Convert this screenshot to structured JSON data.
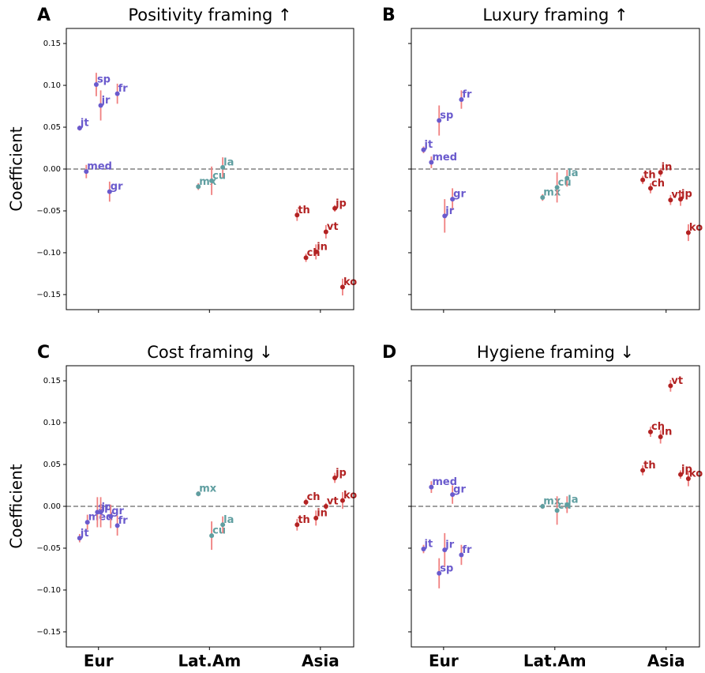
{
  "chart_data": [
    {
      "type": "scatter",
      "panel": "A",
      "title": "Positivity framing ↑",
      "ylabel": "Coefficient",
      "xlim": [
        -0.29,
        2.3
      ],
      "ylim": [
        -0.168,
        0.168
      ],
      "xticks": [
        0,
        1,
        2
      ],
      "show_xtick_labels": false,
      "yticks": [
        {
          "value": -0.15,
          "label": "−0.15"
        },
        {
          "value": -0.1,
          "label": "−0.10"
        },
        {
          "value": -0.05,
          "label": "−0.05"
        },
        {
          "value": 0,
          "label": "0.00"
        },
        0.05,
        {
          "value": 0.1,
          "label": "0.10"
        },
        0.15
      ],
      "show_ytick_labels": true,
      "hline": 0,
      "error_color": "#f08080",
      "series": [
        {
          "color": "#6a5acd",
          "labels": [
            "jt",
            "sp",
            "jr",
            "fr",
            "med",
            "gr"
          ],
          "x": [
            -0.17,
            -0.02,
            0.02,
            0.17,
            -0.11,
            0.1
          ],
          "values": [
            0.049,
            0.101,
            0.076,
            0.09,
            -0.003,
            -0.027
          ],
          "errors": [
            0.003,
            0.014,
            0.018,
            0.012,
            0.008,
            0.012
          ]
        },
        {
          "color": "#5f9ea0",
          "labels": [
            "mx",
            "cu",
            "la"
          ],
          "x": [
            0.9,
            1.02,
            1.12
          ],
          "values": [
            -0.021,
            -0.014,
            0.002
          ],
          "errors": [
            0.004,
            0.017,
            0.012
          ]
        },
        {
          "color": "#b22222",
          "labels": [
            "th",
            "jp",
            "vt",
            "in",
            "ch",
            "ko"
          ],
          "x": [
            1.79,
            2.13,
            2.05,
            1.96,
            1.87,
            2.2
          ],
          "values": [
            -0.055,
            -0.047,
            -0.075,
            -0.099,
            -0.106,
            -0.141
          ],
          "errors": [
            0.007,
            0.004,
            0.008,
            0.009,
            0.005,
            0.01
          ]
        }
      ]
    },
    {
      "type": "scatter",
      "panel": "B",
      "title": "Luxury framing ↑",
      "xlim": [
        -0.29,
        2.3
      ],
      "ylim": [
        -0.168,
        0.168
      ],
      "xticks": [
        0,
        1,
        2
      ],
      "show_xtick_labels": false,
      "yticks": [
        -0.15,
        -0.1,
        -0.05,
        0,
        0.05,
        0.1,
        0.15
      ],
      "show_ytick_labels": false,
      "hline": 0,
      "error_color": "#f08080",
      "series": [
        {
          "color": "#6a5acd",
          "labels": [
            "jt",
            "med",
            "sp",
            "fr",
            "gr",
            "jr"
          ],
          "x": [
            -0.18,
            -0.11,
            -0.04,
            0.16,
            0.08,
            0.01
          ],
          "values": [
            0.023,
            0.008,
            0.058,
            0.083,
            -0.036,
            -0.056
          ],
          "errors": [
            0.004,
            0.007,
            0.018,
            0.011,
            0.013,
            0.02
          ]
        },
        {
          "color": "#5f9ea0",
          "labels": [
            "mx",
            "cu",
            "la"
          ],
          "x": [
            0.89,
            1.02,
            1.11
          ],
          "values": [
            -0.034,
            -0.022,
            -0.011
          ],
          "errors": [
            0.004,
            0.018,
            0.01
          ]
        },
        {
          "color": "#b22222",
          "labels": [
            "th",
            "ch",
            "in",
            "vt",
            "jp",
            "ko"
          ],
          "x": [
            1.79,
            1.86,
            1.95,
            2.04,
            2.13,
            2.2
          ],
          "values": [
            -0.013,
            -0.023,
            -0.004,
            -0.037,
            -0.036,
            -0.076
          ],
          "errors": [
            0.005,
            0.006,
            0.005,
            0.006,
            0.008,
            0.01
          ]
        }
      ]
    },
    {
      "type": "scatter",
      "panel": "C",
      "title": "Cost framing ↓",
      "ylabel": "Coefficient",
      "xlim": [
        -0.29,
        2.3
      ],
      "ylim": [
        -0.168,
        0.168
      ],
      "xticks": [
        {
          "value": 0,
          "label": "Eur"
        },
        {
          "value": 1,
          "label": "Lat.Am"
        },
        {
          "value": 2,
          "label": "Asia"
        }
      ],
      "show_xtick_labels": true,
      "yticks": [
        {
          "value": -0.15,
          "label": "−0.15"
        },
        {
          "value": -0.1,
          "label": "−0.10"
        },
        {
          "value": -0.05,
          "label": "−0.05"
        },
        {
          "value": 0,
          "label": "0.00"
        },
        0.05,
        {
          "value": 0.1,
          "label": "0.10"
        },
        0.15
      ],
      "show_ytick_labels": true,
      "hline": 0,
      "error_color": "#f08080",
      "series": [
        {
          "color": "#6a5acd",
          "labels": [
            "jt",
            "med",
            "sp",
            "jr",
            "gr",
            "fr"
          ],
          "x": [
            -0.17,
            -0.1,
            -0.01,
            0.02,
            0.11,
            0.17
          ],
          "values": [
            -0.038,
            -0.019,
            -0.007,
            -0.007,
            -0.012,
            -0.023
          ],
          "errors": [
            0.005,
            0.009,
            0.018,
            0.018,
            0.014,
            0.012
          ]
        },
        {
          "color": "#5f9ea0",
          "labels": [
            "mx",
            "cu",
            "la"
          ],
          "x": [
            0.9,
            1.02,
            1.12
          ],
          "values": [
            0.015,
            -0.035,
            -0.022
          ],
          "errors": [
            0.003,
            0.017,
            0.01
          ]
        },
        {
          "color": "#b22222",
          "labels": [
            "th",
            "ch",
            "in",
            "vt",
            "jp",
            "ko"
          ],
          "x": [
            1.79,
            1.87,
            1.96,
            2.05,
            2.13,
            2.2
          ],
          "values": [
            -0.022,
            0.005,
            -0.014,
            0,
            0.034,
            0.007
          ],
          "errors": [
            0.007,
            0.004,
            0.009,
            0.004,
            0.006,
            0.01
          ]
        }
      ]
    },
    {
      "type": "scatter",
      "panel": "D",
      "title": "Hygiene framing ↓",
      "xlim": [
        -0.29,
        2.3
      ],
      "ylim": [
        -0.168,
        0.168
      ],
      "xticks": [
        {
          "value": 0,
          "label": "Eur"
        },
        {
          "value": 1,
          "label": "Lat.Am"
        },
        {
          "value": 2,
          "label": "Asia"
        }
      ],
      "show_xtick_labels": true,
      "yticks": [
        -0.15,
        -0.1,
        -0.05,
        0,
        0.05,
        0.1,
        0.15
      ],
      "show_ytick_labels": false,
      "hline": 0,
      "error_color": "#f08080",
      "series": [
        {
          "color": "#6a5acd",
          "labels": [
            "jt",
            "med",
            "sp",
            "jr",
            "gr",
            "fr"
          ],
          "x": [
            -0.18,
            -0.11,
            -0.04,
            0.01,
            0.08,
            0.16
          ],
          "values": [
            -0.051,
            0.023,
            -0.08,
            -0.052,
            0.014,
            -0.058
          ],
          "errors": [
            0.005,
            0.007,
            0.018,
            0.02,
            0.011,
            0.012
          ]
        },
        {
          "color": "#5f9ea0",
          "labels": [
            "mx",
            "cu",
            "la"
          ],
          "x": [
            0.89,
            1.02,
            1.11
          ],
          "values": [
            0,
            -0.005,
            0.002
          ],
          "errors": [
            0.003,
            0.017,
            0.01
          ]
        },
        {
          "color": "#b22222",
          "labels": [
            "th",
            "ch",
            "in",
            "vt",
            "jp",
            "ko"
          ],
          "x": [
            1.79,
            1.86,
            1.95,
            2.04,
            2.13,
            2.2
          ],
          "values": [
            0.043,
            0.089,
            0.083,
            0.144,
            0.038,
            0.033
          ],
          "errors": [
            0.006,
            0.006,
            0.008,
            0.007,
            0.005,
            0.009
          ]
        }
      ]
    }
  ]
}
